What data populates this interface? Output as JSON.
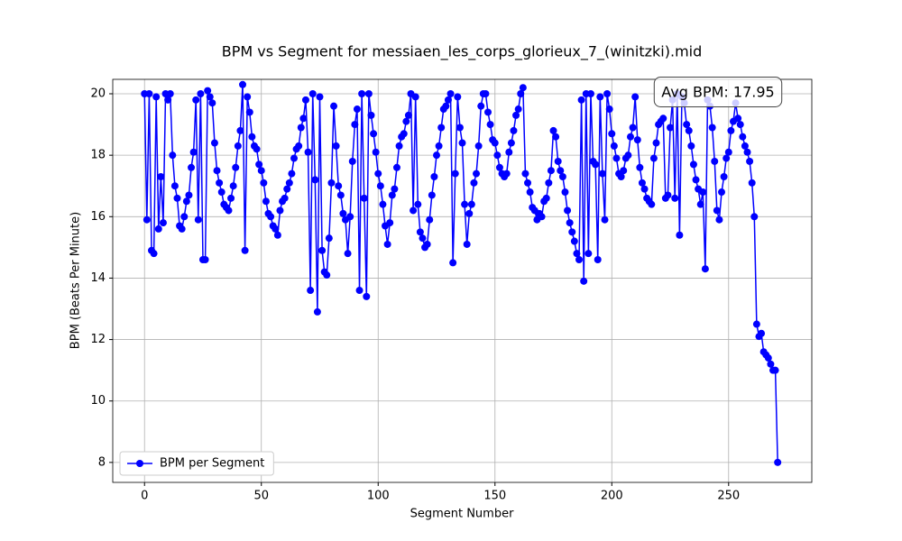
{
  "chart_data": {
    "type": "line",
    "title": "BPM vs Segment for messiaen_les_corps_glorieux_7_(winitzki).mid",
    "x_label": "Segment Number",
    "y_label": "BPM (Beats Per Minute)",
    "annotation": "Avg BPM: 17.95",
    "x": [
      0,
      1,
      2,
      3,
      4,
      5,
      6,
      7,
      8,
      9,
      10,
      11,
      12,
      13,
      14,
      15,
      16,
      17,
      18,
      19,
      20,
      21,
      22,
      23,
      24,
      25,
      26,
      27,
      28,
      29,
      30,
      31,
      32,
      33,
      34,
      35,
      36,
      37,
      38,
      39,
      40,
      41,
      42,
      43,
      44,
      45,
      46,
      47,
      48,
      49,
      50,
      51,
      52,
      53,
      54,
      55,
      56,
      57,
      58,
      59,
      60,
      61,
      62,
      63,
      64,
      65,
      66,
      67,
      68,
      69,
      70,
      71,
      72,
      73,
      74,
      75,
      76,
      77,
      78,
      79,
      80,
      81,
      82,
      83,
      84,
      85,
      86,
      87,
      88,
      89,
      90,
      91,
      92,
      93,
      94,
      95,
      96,
      97,
      98,
      99,
      100,
      101,
      102,
      103,
      104,
      105,
      106,
      107,
      108,
      109,
      110,
      111,
      112,
      113,
      114,
      115,
      116,
      117,
      118,
      119,
      120,
      121,
      122,
      123,
      124,
      125,
      126,
      127,
      128,
      129,
      130,
      131,
      132,
      133,
      134,
      135,
      136,
      137,
      138,
      139,
      140,
      141,
      142,
      143,
      144,
      145,
      146,
      147,
      148,
      149,
      150,
      151,
      152,
      153,
      154,
      155,
      156,
      157,
      158,
      159,
      160,
      161,
      162,
      163,
      164,
      165,
      166,
      167,
      168,
      169,
      170,
      171,
      172,
      173,
      174,
      175,
      176,
      177,
      178,
      179,
      180,
      181,
      182,
      183,
      184,
      185,
      186,
      187,
      188,
      189,
      190,
      191,
      192,
      193,
      194,
      195,
      196,
      197,
      198,
      199,
      200,
      201,
      202,
      203,
      204,
      205,
      206,
      207,
      208,
      209,
      210,
      211,
      212,
      213,
      214,
      215,
      216,
      217,
      218,
      219,
      220,
      221,
      222,
      223,
      224,
      225,
      226,
      227,
      228,
      229,
      230,
      231,
      232,
      233,
      234,
      235,
      236,
      237,
      238,
      239,
      240,
      241,
      242,
      243,
      244,
      245,
      246,
      247,
      248,
      249,
      250,
      251,
      252,
      253,
      254,
      255,
      256,
      257,
      258,
      259,
      260,
      261,
      262,
      263,
      264,
      265,
      266,
      267,
      268,
      269,
      270,
      271
    ],
    "series": [
      {
        "name": "BPM per Segment",
        "color": "#0000ff",
        "values": [
          20.0,
          15.9,
          20.0,
          14.9,
          14.8,
          19.9,
          15.6,
          17.3,
          15.8,
          20.0,
          19.8,
          20.0,
          18.0,
          17.0,
          16.6,
          15.7,
          15.6,
          16.0,
          16.5,
          16.7,
          17.6,
          18.1,
          19.8,
          15.9,
          20.0,
          14.6,
          14.6,
          20.1,
          19.9,
          19.7,
          18.4,
          17.5,
          17.1,
          16.8,
          16.4,
          16.3,
          16.2,
          16.6,
          17.0,
          17.6,
          18.3,
          18.8,
          20.3,
          14.9,
          19.9,
          19.4,
          18.6,
          18.3,
          18.2,
          17.7,
          17.5,
          17.1,
          16.5,
          16.1,
          16.0,
          15.7,
          15.6,
          15.4,
          16.2,
          16.5,
          16.6,
          16.9,
          17.1,
          17.4,
          17.9,
          18.2,
          18.3,
          18.9,
          19.2,
          19.8,
          18.1,
          13.6,
          20.0,
          17.2,
          12.9,
          19.9,
          14.9,
          14.2,
          14.1,
          15.3,
          17.1,
          19.6,
          18.3,
          17.0,
          16.7,
          16.1,
          15.9,
          14.8,
          16.0,
          17.8,
          19.0,
          19.5,
          13.6,
          20.0,
          16.6,
          13.4,
          20.0,
          19.3,
          18.7,
          18.1,
          17.4,
          17.0,
          16.4,
          15.7,
          15.1,
          15.8,
          16.7,
          16.9,
          17.6,
          18.3,
          18.6,
          18.7,
          19.1,
          19.3,
          20.0,
          16.2,
          19.9,
          16.4,
          15.5,
          15.3,
          15.0,
          15.1,
          15.9,
          16.7,
          17.3,
          18.0,
          18.3,
          18.9,
          19.5,
          19.6,
          19.8,
          20.0,
          14.5,
          17.4,
          19.9,
          18.9,
          18.4,
          16.4,
          15.1,
          16.1,
          16.4,
          17.1,
          17.4,
          18.3,
          19.6,
          20.0,
          20.0,
          19.4,
          19.0,
          18.5,
          18.4,
          18.0,
          17.6,
          17.4,
          17.3,
          17.4,
          18.1,
          18.4,
          18.8,
          19.3,
          19.5,
          20.0,
          20.2,
          17.4,
          17.1,
          16.8,
          16.3,
          16.2,
          15.9,
          16.1,
          16.0,
          16.5,
          16.6,
          17.1,
          17.5,
          18.8,
          18.6,
          17.8,
          17.5,
          17.3,
          16.8,
          16.2,
          15.8,
          15.5,
          15.2,
          14.8,
          14.6,
          19.8,
          13.9,
          20.0,
          14.8,
          20.0,
          17.8,
          17.7,
          14.6,
          19.9,
          17.4,
          15.9,
          20.0,
          19.5,
          18.7,
          18.3,
          17.9,
          17.4,
          17.3,
          17.5,
          17.9,
          18.0,
          18.6,
          18.9,
          19.9,
          18.5,
          17.6,
          17.1,
          16.9,
          16.6,
          16.5,
          16.4,
          17.9,
          18.4,
          19.0,
          19.1,
          19.2,
          16.6,
          16.7,
          18.9,
          19.8,
          16.6,
          20.0,
          15.4,
          19.9,
          19.7,
          19.0,
          18.8,
          18.3,
          17.7,
          17.2,
          16.9,
          16.4,
          16.8,
          14.3,
          19.8,
          19.6,
          18.9,
          17.8,
          16.2,
          15.9,
          16.8,
          17.3,
          17.9,
          18.1,
          18.8,
          19.1,
          19.7,
          19.2,
          19.0,
          18.6,
          18.3,
          18.1,
          17.8,
          17.1,
          16.0,
          12.5,
          12.1,
          12.2,
          11.6,
          11.5,
          11.4,
          11.2,
          11.0,
          11.0,
          8.0
        ]
      }
    ],
    "xlim": [
      -13.6,
      285.6
    ],
    "ylim": [
      7.35,
      20.47
    ],
    "xticks": [
      0,
      50,
      100,
      150,
      200,
      250
    ],
    "yticks": [
      8,
      10,
      12,
      14,
      16,
      18,
      20
    ],
    "grid": true,
    "legend": "lower left"
  }
}
